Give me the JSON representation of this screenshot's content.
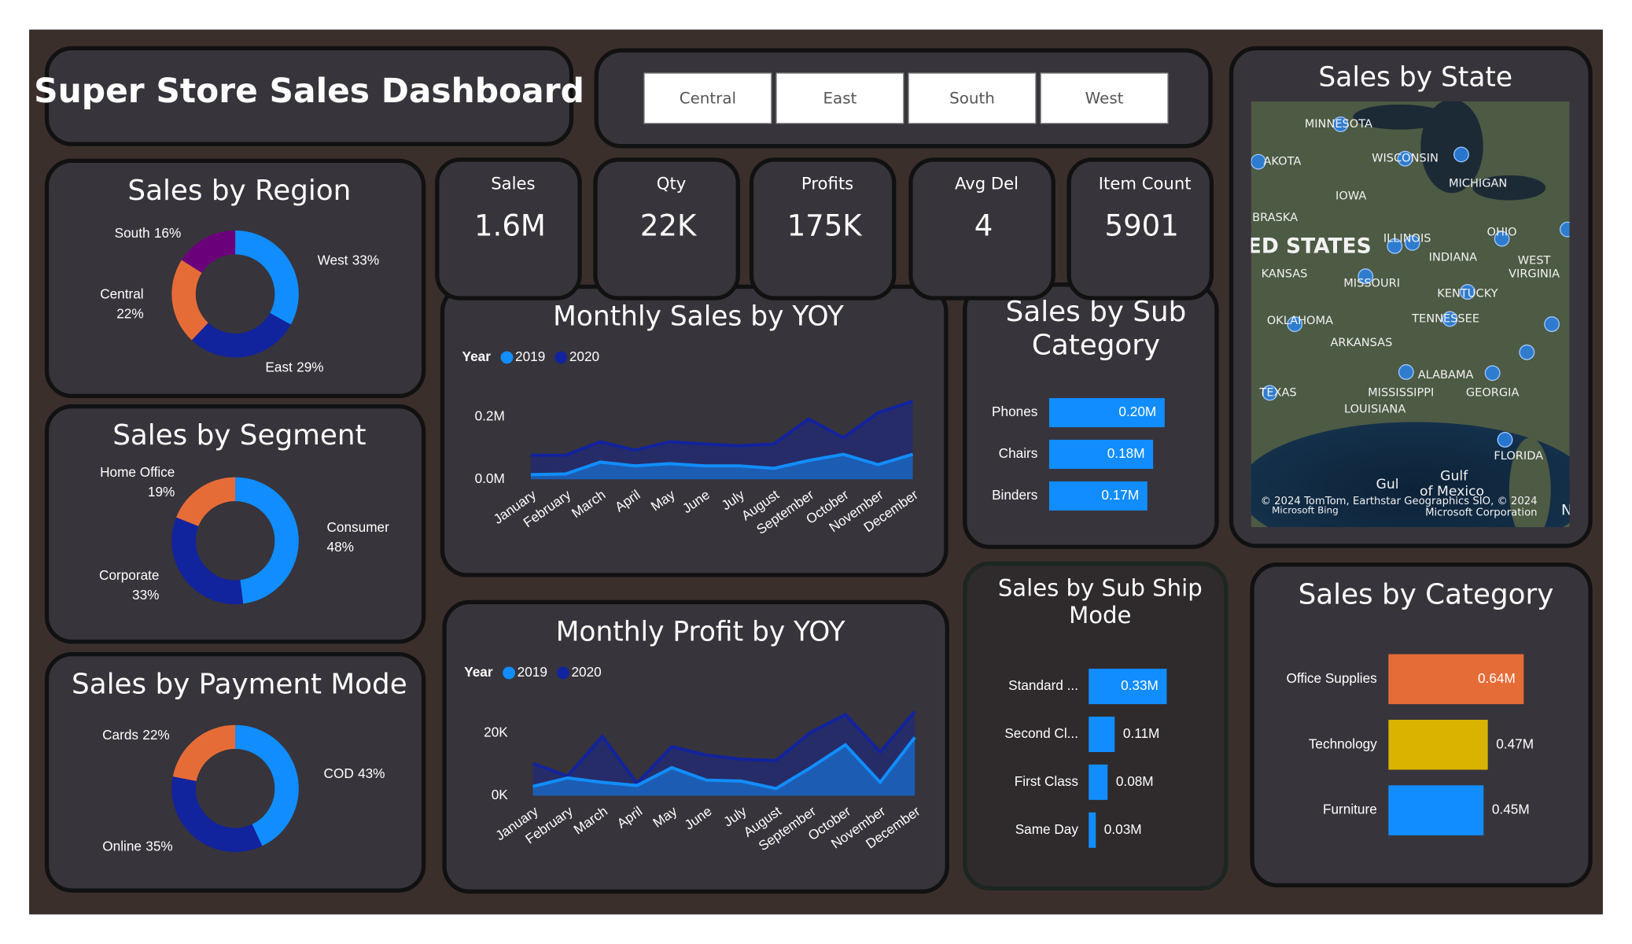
{
  "header": {
    "title": "Super Store Sales Dashboard"
  },
  "slicer": {
    "options": [
      "Central",
      "East",
      "South",
      "West"
    ]
  },
  "kpis": [
    {
      "label": "Sales",
      "value": "1.6M"
    },
    {
      "label": "Qty",
      "value": "22K"
    },
    {
      "label": "Profits",
      "value": "175K"
    },
    {
      "label": "Avg Del",
      "value": 4
    },
    {
      "label": "Item Count",
      "value": 5901
    }
  ],
  "map": {
    "title": "Sales by State",
    "labels": [
      "MINNESOTA",
      "AKOTA",
      "WISCONSIN",
      "MICHIGAN",
      "IOWA",
      "BRASKA",
      "ED STATES",
      "ILLINOIS",
      "OHIO",
      "INDIANA",
      "WEST",
      "VIRGINIA",
      "KANSAS",
      "MISSOURI",
      "KENTUCKY",
      "OKLAHOMA",
      "TENNESSEE",
      "ARKANSAS",
      "ALABAMA",
      "GEORGIA",
      "MISSISSIPPI",
      "LOUISIANA",
      "TEXAS",
      "FLORIDA",
      "Gulf",
      "of Mexico",
      "Gul",
      "© 2024 TomTom, Earthstar Geographics SIO, © 2024",
      "Microsoft Corporation",
      "Microsoft Bing",
      "Na"
    ]
  },
  "chart_data": [
    {
      "type": "donut",
      "title": "Sales by Region",
      "categories": [
        "West",
        "East",
        "Central",
        "South"
      ],
      "values": [
        33,
        29,
        22,
        16
      ],
      "value_labels": [
        "33%",
        "29%",
        "22%",
        "16%"
      ],
      "colors": [
        "#118DFF",
        "#12239E",
        "#E66C37",
        "#6B007B"
      ]
    },
    {
      "type": "donut",
      "title": "Sales by Segment",
      "categories": [
        "Consumer",
        "Corporate",
        "Home Office"
      ],
      "values": [
        48,
        33,
        19
      ],
      "value_labels": [
        "48%",
        "33%",
        "19%"
      ],
      "colors": [
        "#118DFF",
        "#12239E",
        "#E66C37"
      ]
    },
    {
      "type": "donut",
      "title": "Sales by Payment Mode",
      "categories": [
        "COD",
        "Online",
        "Cards"
      ],
      "values": [
        43,
        35,
        22
      ],
      "value_labels": [
        "43%",
        "35%",
        "22%"
      ],
      "colors": [
        "#118DFF",
        "#12239E",
        "#E66C37"
      ]
    },
    {
      "type": "area",
      "title": "Monthly Sales by YOY",
      "legend_title": "Year",
      "categories": [
        "January",
        "February",
        "March",
        "April",
        "May",
        "June",
        "July",
        "August",
        "September",
        "October",
        "November",
        "December"
      ],
      "series": [
        {
          "name": "2019",
          "color": "#118DFF",
          "values": [
            15000,
            17000,
            55000,
            43000,
            50000,
            43000,
            43000,
            35000,
            60000,
            80000,
            47000,
            80000
          ]
        },
        {
          "name": "2020",
          "color": "#12239E",
          "values": [
            77000,
            77000,
            120000,
            93000,
            120000,
            113000,
            107000,
            113000,
            193000,
            133000,
            213000,
            250000
          ]
        }
      ],
      "ylim": [
        0,
        280000
      ],
      "yticks": [
        {
          "value": 0,
          "label": "0.0M"
        },
        {
          "value": 200000,
          "label": "0.2M"
        }
      ]
    },
    {
      "type": "area",
      "title": "Monthly Profit by YOY",
      "legend_title": "Year",
      "categories": [
        "January",
        "February",
        "March",
        "April",
        "May",
        "June",
        "July",
        "August",
        "September",
        "October",
        "November",
        "December"
      ],
      "series": [
        {
          "name": "2019",
          "color": "#118DFF",
          "values": [
            3000,
            5700,
            4300,
            3300,
            9000,
            5000,
            4700,
            2300,
            9000,
            16300,
            4300,
            18700
          ]
        },
        {
          "name": "2020",
          "color": "#12239E",
          "values": [
            10300,
            6300,
            19000,
            4000,
            15700,
            13000,
            11700,
            11300,
            20300,
            26000,
            14000,
            27000
          ]
        }
      ],
      "ylim": [
        0,
        28000
      ],
      "yticks": [
        {
          "value": 0,
          "label": "0K"
        },
        {
          "value": 20000,
          "label": "20K"
        }
      ]
    },
    {
      "type": "hbar",
      "title": "Sales by Sub Category",
      "categories": [
        "Phones",
        "Chairs",
        "Binders"
      ],
      "values": [
        200000,
        180000,
        170000
      ],
      "value_labels": [
        "0.20M",
        "0.18M",
        "0.17M"
      ],
      "colors": [
        "#118DFF",
        "#118DFF",
        "#118DFF"
      ]
    },
    {
      "type": "hbar",
      "title": "Sales by Sub Ship Mode",
      "categories": [
        "Standard ...",
        "Second Cl...",
        "First Class",
        "Same Day"
      ],
      "values": [
        330000,
        110000,
        80000,
        30000
      ],
      "value_labels": [
        "0.33M",
        "0.11M",
        "0.08M",
        "0.03M"
      ],
      "colors": [
        "#118DFF",
        "#118DFF",
        "#118DFF",
        "#118DFF"
      ]
    },
    {
      "type": "hbar",
      "title": "Sales by Category",
      "categories": [
        "Office Supplies",
        "Technology",
        "Furniture"
      ],
      "values": [
        640000,
        470000,
        450000
      ],
      "value_labels": [
        "0.64M",
        "0.47M",
        "0.45M"
      ],
      "colors": [
        "#E66C37",
        "#D9B300",
        "#118DFF"
      ]
    }
  ]
}
